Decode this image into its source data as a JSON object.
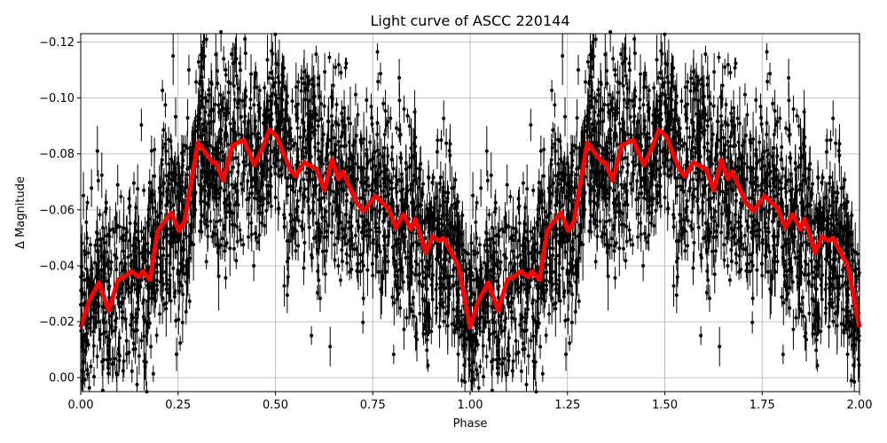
{
  "chart_data": {
    "type": "scatter",
    "title": "Light curve of ASCC 220144",
    "xlabel": "Phase",
    "ylabel": "Δ Magnitude",
    "xlim": [
      0,
      2
    ],
    "ylim": [
      0.005,
      -0.123
    ],
    "y_inverted": true,
    "grid": true,
    "x_ticks": [
      "0.00",
      "0.25",
      "0.50",
      "0.75",
      "1.00",
      "1.25",
      "1.50",
      "1.75",
      "2.00"
    ],
    "x_tick_values": [
      0,
      0.25,
      0.5,
      0.75,
      1,
      1.25,
      1.5,
      1.75,
      2
    ],
    "y_ticks": [
      "−0.12",
      "−0.10",
      "−0.08",
      "−0.06",
      "−0.04",
      "−0.02",
      "0.00"
    ],
    "y_tick_values": [
      -0.12,
      -0.1,
      -0.08,
      -0.06,
      -0.04,
      -0.02,
      0.0
    ],
    "period_repeat": 1,
    "observations_color": "#000000",
    "model": {
      "color": "#ff0000",
      "phase": [
        0,
        0.02,
        0.047,
        0.072,
        0.096,
        0.112,
        0.13,
        0.15,
        0.159,
        0.178,
        0.198,
        0.233,
        0.252,
        0.267,
        0.301,
        0.339,
        0.347,
        0.366,
        0.389,
        0.419,
        0.446,
        0.468,
        0.485,
        0.503,
        0.537,
        0.551,
        0.574,
        0.605,
        0.626,
        0.645,
        0.662,
        0.673,
        0.708,
        0.727,
        0.757,
        0.79,
        0.81,
        0.829,
        0.848,
        0.859,
        0.886,
        0.904,
        0.92,
        0.932,
        0.97,
        1.0
      ],
      "magnitude": [
        -0.018,
        -0.027,
        -0.034,
        -0.024,
        -0.035,
        -0.036,
        -0.038,
        -0.036,
        -0.038,
        -0.035,
        -0.0525,
        -0.059,
        -0.0525,
        -0.056,
        -0.084,
        -0.077,
        -0.077,
        -0.0705,
        -0.083,
        -0.085,
        -0.076,
        -0.0825,
        -0.0887,
        -0.0864,
        -0.0747,
        -0.072,
        -0.077,
        -0.0747,
        -0.067,
        -0.078,
        -0.071,
        -0.0737,
        -0.0627,
        -0.0595,
        -0.065,
        -0.0605,
        -0.0536,
        -0.0584,
        -0.053,
        -0.0568,
        -0.0446,
        -0.0505,
        -0.0489,
        -0.05,
        -0.04,
        -0.018
      ]
    }
  }
}
